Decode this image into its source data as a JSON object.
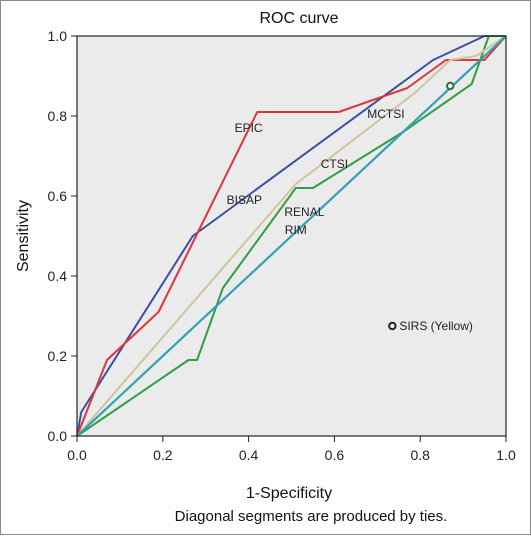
{
  "chart_data": {
    "type": "line",
    "title": "ROC curve",
    "xlabel": "1-Specificity",
    "ylabel": "Sensitivity",
    "xlim": [
      0,
      1
    ],
    "ylim": [
      0,
      1
    ],
    "xticks": [
      "0.0",
      "0.2",
      "0.4",
      "0.6",
      "0.8",
      "1.0"
    ],
    "yticks": [
      "0.0",
      "0.2",
      "0.4",
      "0.6",
      "0.8",
      "1.0"
    ],
    "grid": false,
    "background": "#ebebeb",
    "footnote": "Diagonal segments are produced by ties.",
    "series": [
      {
        "name": "BISAP",
        "color": "#3b4fa8",
        "x": [
          0,
          0.01,
          0.27,
          0.83,
          0.95,
          1.0
        ],
        "y": [
          0,
          0.06,
          0.5,
          0.94,
          1.0,
          1.0
        ],
        "label_at": [
          0.39,
          0.58
        ]
      },
      {
        "name": "EPIC",
        "color": "#e0343c",
        "x": [
          0,
          0.07,
          0.19,
          0.42,
          0.61,
          0.77,
          0.86,
          0.95,
          1.0
        ],
        "y": [
          0,
          0.19,
          0.31,
          0.81,
          0.81,
          0.87,
          0.94,
          0.94,
          1.0
        ],
        "label_at": [
          0.4,
          0.76
        ]
      },
      {
        "name": "CTSI",
        "color": "#2f9e45",
        "x": [
          0,
          0.26,
          0.28,
          0.34,
          0.51,
          0.55,
          0.76,
          0.92,
          0.96,
          1.0
        ],
        "y": [
          0,
          0.19,
          0.19,
          0.37,
          0.62,
          0.62,
          0.76,
          0.88,
          1.0,
          1.0
        ],
        "label_at": [
          0.6,
          0.67
        ]
      },
      {
        "name": "MCTSI",
        "color": "#cfc59a",
        "x": [
          0,
          0.51,
          0.79,
          0.87,
          0.93,
          1.0
        ],
        "y": [
          0,
          0.63,
          0.86,
          0.94,
          0.95,
          1.0
        ],
        "label_at": [
          0.72,
          0.795
        ]
      },
      {
        "name": "RENAL",
        "color": "#7b2e7a",
        "x": [
          0,
          0.87,
          1.0
        ],
        "y": [
          0,
          0.87,
          1.0
        ],
        "label_at": [
          0.53,
          0.55
        ]
      },
      {
        "name": "RIM",
        "color": "#2aa8b4",
        "x": [
          0,
          1.0
        ],
        "y": [
          0,
          1.0
        ],
        "label_at": [
          0.51,
          0.505
        ]
      }
    ],
    "points": [
      {
        "name": "SIRS (Yellow)",
        "x": 0.735,
        "y": 0.275,
        "color": "#222222",
        "label_visible": true
      },
      {
        "name": "SIRS marker on curve",
        "x": 0.87,
        "y": 0.875,
        "color": "#2f6f3a",
        "label_visible": false
      }
    ]
  }
}
